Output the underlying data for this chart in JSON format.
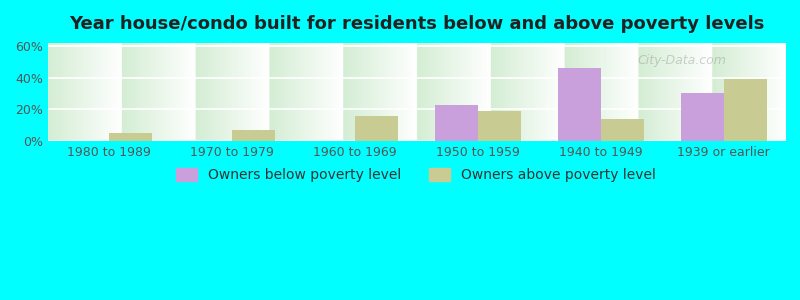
{
  "title": "Year house/condo built for residents below and above poverty levels",
  "categories": [
    "1980 to 1989",
    "1970 to 1979",
    "1960 to 1969",
    "1950 to 1959",
    "1940 to 1949",
    "1939 or earlier"
  ],
  "below_poverty": [
    0,
    0,
    0,
    23,
    46,
    30
  ],
  "above_poverty": [
    5,
    7,
    16,
    19,
    14,
    39
  ],
  "below_color": "#c9a0dc",
  "above_color": "#c8cc92",
  "background_color": "#00ffff",
  "ylabel_ticks": [
    "0%",
    "20%",
    "40%",
    "60%"
  ],
  "ytick_vals": [
    0,
    20,
    40,
    60
  ],
  "ylim": [
    0,
    62
  ],
  "legend_below": "Owners below poverty level",
  "legend_above": "Owners above poverty level",
  "bar_width": 0.35,
  "title_fontsize": 13,
  "tick_fontsize": 9,
  "legend_fontsize": 10
}
